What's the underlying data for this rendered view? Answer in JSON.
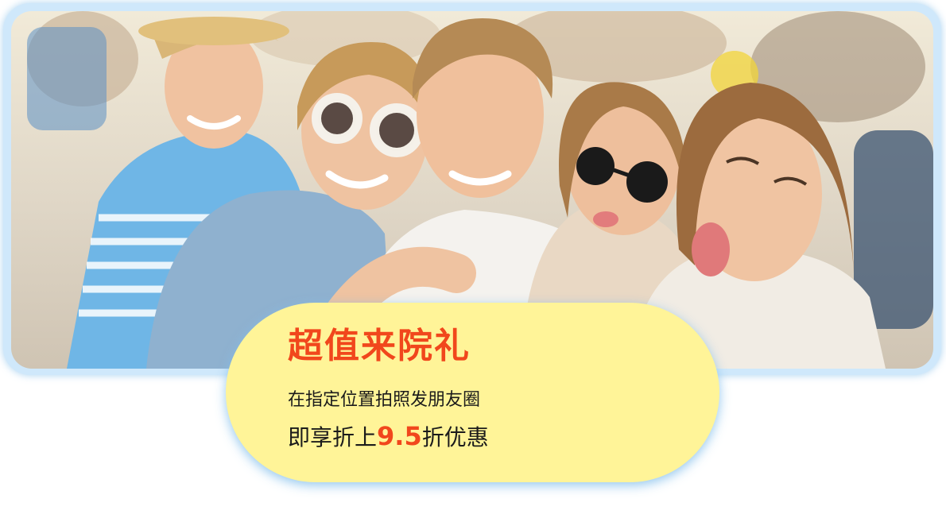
{
  "banner": {
    "photo_alt": "Group of smiling young friends at an outdoor festival",
    "title": "超值来院礼",
    "line1": "在指定位置拍照发朋友圈",
    "line2_prefix": "即享折上",
    "line2_discount": "9.5",
    "line2_suffix": "折优惠"
  },
  "colors": {
    "accent": "#f1471c",
    "card_background": "#fff498",
    "frame_border": "#cfe8fb",
    "text": "#1b1b1b"
  }
}
